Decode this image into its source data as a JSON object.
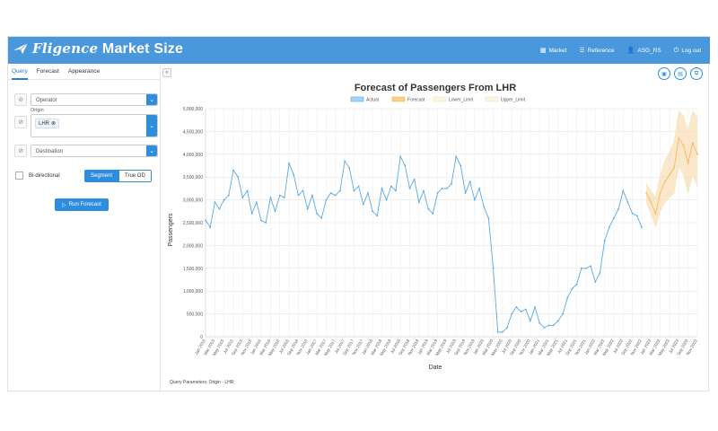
{
  "app": {
    "brand": "Fligence",
    "title": "Market Size"
  },
  "nav": {
    "market": "Market",
    "reference": "Reference",
    "user": "ASG_RS",
    "logout": "Log out"
  },
  "sidebar": {
    "tabs": [
      "Query",
      "Forecast",
      "Appearance"
    ],
    "operator_placeholder": "Operator",
    "origin_label": "Origin",
    "origin_tag": "LHR",
    "destination_placeholder": "Destination",
    "bidirectional_label": "Bi-directional",
    "segment_label": "Segment",
    "true_od_label": "True OD",
    "run_label": "Run Forecast"
  },
  "main": {
    "query_params": "Query Parameters: Origin - LHR;"
  },
  "colors": {
    "header": "#4a98dc",
    "accent": "#2d8ee0",
    "actual": "#5aa9e6",
    "forecast": "#f5b859"
  },
  "chart_data": {
    "type": "line",
    "title": "Forecast of Passengers From LHR",
    "xlabel": "Date",
    "ylabel": "Passengers",
    "ylim": [
      0,
      5000000
    ],
    "ytick_step": 500000,
    "grid": true,
    "legend_position": "top",
    "legend": [
      "Actual",
      "Forecast",
      "Lower_Limit",
      "Upper_Limit"
    ],
    "x_start": "2015-01",
    "x_tick_labels": [
      "Jan 2015",
      "Mar 2015",
      "May 2015",
      "Jul 2015",
      "Sep 2015",
      "Nov 2015",
      "Jan 2016",
      "Mar 2016",
      "May 2016",
      "Jul 2016",
      "Sep 2016",
      "Nov 2016",
      "Jan 2017",
      "Mar 2017",
      "May 2017",
      "Jul 2017",
      "Sep 2017",
      "Nov 2017",
      "Jan 2018",
      "Mar 2018",
      "May 2018",
      "Jul 2018",
      "Sep 2018",
      "Nov 2018",
      "Jan 2019",
      "Mar 2019",
      "May 2019",
      "Jul 2019",
      "Sep 2019",
      "Nov 2019",
      "Jan 2020",
      "Mar 2020",
      "May 2020",
      "Jul 2020",
      "Sep 2020",
      "Nov 2020",
      "Jan 2021",
      "Mar 2021",
      "May 2021",
      "Jul 2021",
      "Sep 2021",
      "Nov 2021",
      "Jan 2022",
      "Mar 2022",
      "May 2022",
      "Jul 2022",
      "Sep 2022",
      "Nov 2022",
      "Jan 2023",
      "Mar 2023",
      "May 2023",
      "Jul 2023",
      "Sep 2023",
      "Nov 2023"
    ],
    "series": [
      {
        "name": "Actual",
        "values": [
          2550000,
          2400000,
          2950000,
          2800000,
          3000000,
          3100000,
          3650000,
          3500000,
          3050000,
          3200000,
          2700000,
          2950000,
          2550000,
          2500000,
          3050000,
          2750000,
          3100000,
          3050000,
          3800000,
          3550000,
          3100000,
          3200000,
          2800000,
          3100000,
          2700000,
          2600000,
          3000000,
          3150000,
          3100000,
          3200000,
          3850000,
          3700000,
          3200000,
          3300000,
          2900000,
          3150000,
          2750000,
          2650000,
          3250000,
          3000000,
          3300000,
          3200000,
          3950000,
          3750000,
          3250000,
          3450000,
          2950000,
          3200000,
          2800000,
          2700000,
          3150000,
          3250000,
          3250000,
          3350000,
          3950000,
          3750000,
          3150000,
          3400000,
          3000000,
          3250000,
          2850000,
          2600000,
          1500000,
          100000,
          100000,
          200000,
          500000,
          650000,
          550000,
          600000,
          350000,
          650000,
          300000,
          200000,
          250000,
          250000,
          350000,
          500000,
          850000,
          1050000,
          1150000,
          1500000,
          1500000,
          1550000,
          1200000,
          1400000,
          2100000,
          2400000,
          2600000,
          2800000,
          3200000,
          2950000,
          2700000,
          2650000,
          2400000
        ]
      },
      {
        "name": "Forecast",
        "values": [
          3150000,
          2950000,
          2700000,
          3150000,
          3400000,
          3550000,
          3700000,
          4350000,
          4200000,
          3800000,
          4250000,
          4000000
        ]
      },
      {
        "name": "Lower_Limit",
        "values": [
          2950000,
          2700000,
          2400000,
          2750000,
          2950000,
          3050000,
          3150000,
          3750000,
          3550000,
          3150000,
          3550000,
          3300000
        ]
      },
      {
        "name": "Upper_Limit",
        "values": [
          3350000,
          3200000,
          3050000,
          3550000,
          3850000,
          4050000,
          4300000,
          4950000,
          4850000,
          4500000,
          4950000,
          4800000
        ]
      }
    ],
    "forecast_start_index": 95
  }
}
